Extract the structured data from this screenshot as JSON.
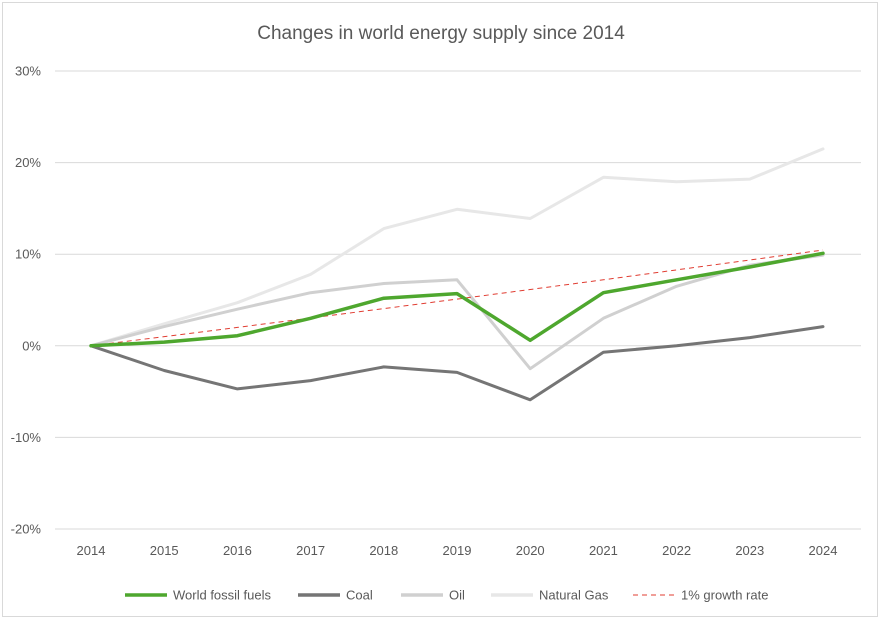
{
  "chart_data": {
    "type": "line",
    "title": "Changes in world energy supply since 2014",
    "x": [
      "2014",
      "2015",
      "2016",
      "2017",
      "2018",
      "2019",
      "2020",
      "2021",
      "2022",
      "2023",
      "2024"
    ],
    "ylim": [
      -0.2,
      0.3
    ],
    "yticks": [
      {
        "value": 0.3,
        "label": "30%"
      },
      {
        "value": 0.2,
        "label": "20%"
      },
      {
        "value": 0.1,
        "label": "10%"
      },
      {
        "value": 0.0,
        "label": "0%"
      },
      {
        "value": -0.1,
        "label": "-10%"
      },
      {
        "value": -0.2,
        "label": "-20%"
      }
    ],
    "grid": true,
    "legend_position": "bottom",
    "series": [
      {
        "name": "Natural Gas",
        "color": "#e7e7e7",
        "dashed": false,
        "width": 3,
        "values": [
          0.0,
          0.024,
          0.047,
          0.078,
          0.128,
          0.149,
          0.139,
          0.184,
          0.179,
          0.182,
          0.215
        ]
      },
      {
        "name": "Oil",
        "color": "#d0d0d0",
        "dashed": false,
        "width": 3,
        "values": [
          0.0,
          0.021,
          0.04,
          0.058,
          0.068,
          0.072,
          -0.025,
          0.03,
          0.065,
          0.088,
          0.099
        ]
      },
      {
        "name": "Coal",
        "color": "#757575",
        "dashed": false,
        "width": 3,
        "values": [
          0.0,
          -0.027,
          -0.047,
          -0.038,
          -0.023,
          -0.029,
          -0.059,
          -0.007,
          0.0,
          0.009,
          0.021
        ]
      },
      {
        "name": "1% growth rate",
        "color": "#e03c31",
        "dashed": true,
        "width": 1,
        "values": [
          0.0,
          0.01,
          0.0201,
          0.0303,
          0.0406,
          0.051,
          0.0615,
          0.0721,
          0.0829,
          0.0937,
          0.1046
        ]
      },
      {
        "name": "World fossil fuels",
        "color": "#4ea72e",
        "dashed": false,
        "width": 3.5,
        "values": [
          0.0,
          0.004,
          0.011,
          0.03,
          0.052,
          0.057,
          0.006,
          0.058,
          0.072,
          0.086,
          0.101
        ]
      }
    ],
    "legend_order": [
      "World fossil fuels",
      "Coal",
      "Oil",
      "Natural Gas",
      "1% growth rate"
    ]
  }
}
